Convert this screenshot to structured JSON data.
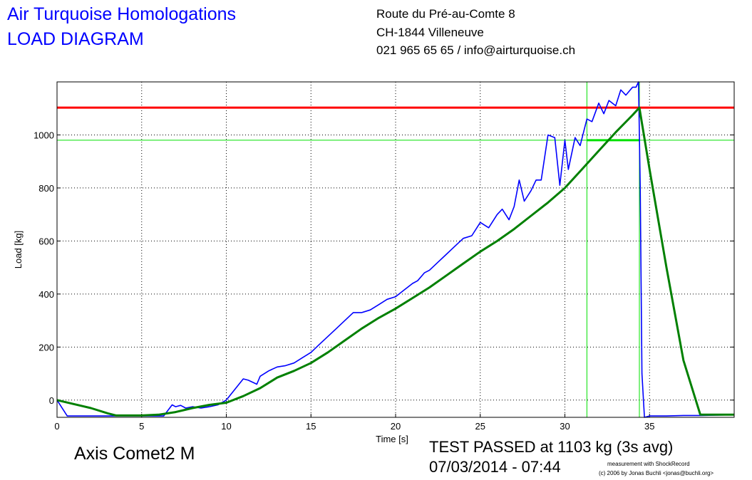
{
  "header": {
    "company": "Air Turquoise Homologations",
    "title": "LOAD DIAGRAM",
    "address": [
      "Route du Pré-au-Comte 8",
      "CH-1844 Villeneuve",
      "021 965 65 65 / info@airturquoise.ch"
    ]
  },
  "footer": {
    "product": "Axis Comet2 M",
    "result": "TEST PASSED at 1103 kg (3s avg)",
    "datetime": "07/03/2014 - 07:44",
    "credit_line1": "measurement with ShockRecord",
    "credit_line2": "(c) 2006 by Jonas Buchli <jonas@buchli.org>"
  },
  "colors": {
    "raw_load": "#0000ff",
    "avg_load": "#008000",
    "threshold": "#ff0000",
    "marker": "#00e000",
    "grid": "#000000"
  },
  "chart_data": {
    "type": "line",
    "xlabel": "Time [s]",
    "ylabel": "Load [kg]",
    "xlim": [
      0,
      40
    ],
    "ylim": [
      -65,
      1200
    ],
    "x_ticks": [
      0,
      5,
      10,
      15,
      20,
      25,
      30,
      35
    ],
    "y_ticks": [
      0,
      200,
      400,
      600,
      800,
      1000
    ],
    "grid": true,
    "reference_lines": {
      "horizontal": [
        1103,
        980
      ],
      "vertical": [
        31.3,
        34.4
      ]
    },
    "series": [
      {
        "key": "raw",
        "x": [
          0,
          0.6,
          2,
          3.5,
          5,
          6.3,
          6.8,
          7,
          7.3,
          7.6,
          8,
          8.5,
          9,
          9.5,
          10,
          10.5,
          11,
          11.3,
          11.8,
          12,
          12.5,
          13,
          13.5,
          14,
          14.5,
          15,
          15.5,
          16,
          16.5,
          17,
          17.5,
          18,
          18.5,
          19,
          19.5,
          20,
          20.5,
          21,
          21.3,
          21.7,
          22,
          22.5,
          23,
          23.5,
          24,
          24.5,
          25,
          25.5,
          26,
          26.3,
          26.7,
          27,
          27.3,
          27.6,
          28,
          28.3,
          28.6,
          29,
          29.4,
          29.7,
          30,
          30.2,
          30.6,
          30.9,
          31.3,
          31.6,
          32,
          32.3,
          32.6,
          33,
          33.3,
          33.6,
          34,
          34.2,
          34.35,
          34.45,
          34.55,
          34.7,
          35,
          36,
          37,
          38,
          39,
          40
        ],
        "y": [
          0,
          -60,
          -60,
          -60,
          -60,
          -60,
          -18,
          -25,
          -20,
          -30,
          -25,
          -30,
          -25,
          -18,
          0,
          40,
          80,
          75,
          60,
          90,
          110,
          125,
          130,
          140,
          160,
          180,
          210,
          240,
          270,
          300,
          330,
          330,
          340,
          360,
          380,
          390,
          415,
          440,
          450,
          480,
          490,
          520,
          550,
          580,
          610,
          620,
          670,
          650,
          700,
          720,
          680,
          730,
          830,
          750,
          790,
          830,
          830,
          1000,
          990,
          810,
          980,
          870,
          990,
          960,
          1060,
          1050,
          1120,
          1080,
          1130,
          1110,
          1170,
          1150,
          1180,
          1180,
          1200,
          800,
          100,
          -65,
          -60,
          -60,
          -58,
          -58,
          -57,
          -55
        ]
      },
      {
        "key": "avg",
        "x": [
          0,
          1,
          2,
          3,
          3.5,
          5,
          6,
          7,
          8,
          9,
          10,
          11,
          12,
          13,
          14,
          15,
          16,
          17,
          18,
          19,
          20,
          21,
          22,
          23,
          24,
          25,
          26,
          27,
          28,
          29,
          30,
          31,
          32,
          33,
          34,
          34.4,
          35,
          36,
          37,
          38,
          39,
          40
        ],
        "y": [
          0,
          -15,
          -30,
          -50,
          -58,
          -58,
          -55,
          -45,
          -30,
          -18,
          -10,
          15,
          45,
          85,
          110,
          140,
          180,
          225,
          270,
          310,
          345,
          385,
          425,
          470,
          515,
          560,
          600,
          645,
          695,
          745,
          800,
          870,
          940,
          1010,
          1075,
          1103,
          870,
          500,
          150,
          -55,
          -55,
          -55
        ]
      }
    ]
  }
}
